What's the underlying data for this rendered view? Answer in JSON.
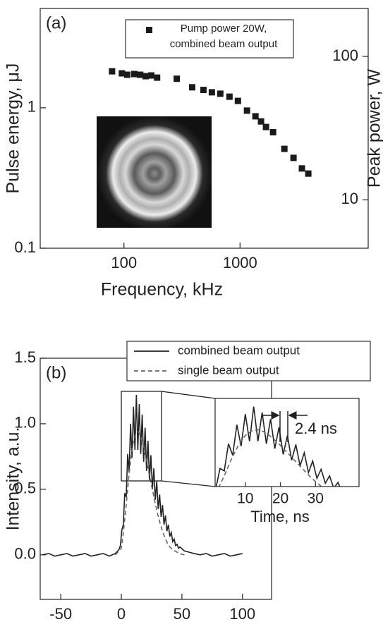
{
  "chart_data": [
    {
      "type": "scatter",
      "annotation": "(a)",
      "xlabel": "Frequency, kHz",
      "ylabel": "Pulse energy, μJ",
      "y2label": "Peak power, W",
      "xscale": "log",
      "yscale": "log",
      "y2scale": "log",
      "xlim": [
        19,
        12700
      ],
      "ylim": [
        0.1,
        5.1
      ],
      "y2lim": [
        4.6,
        216
      ],
      "xticks": [
        100,
        1000
      ],
      "yticks": [
        0.1,
        1
      ],
      "y2ticks": [
        10,
        100
      ],
      "series": [
        {
          "name": "Pump power 20W, combined beam output",
          "color": "#1a1a1a",
          "x": [
            79,
            96,
            107,
            123,
            138,
            154,
            172,
            193,
            285,
            387,
            484,
            572,
            676,
            811,
            959,
            1148,
            1358,
            1516,
            1673,
            1926,
            2409,
            2887,
            3412,
            3872
          ],
          "values": [
            1.82,
            1.76,
            1.72,
            1.74,
            1.72,
            1.68,
            1.7,
            1.64,
            1.61,
            1.4,
            1.34,
            1.29,
            1.26,
            1.2,
            1.12,
            0.955,
            0.87,
            0.8,
            0.73,
            0.67,
            0.51,
            0.44,
            0.37,
            0.34
          ]
        }
      ]
    },
    {
      "type": "line",
      "annotation": "(b)",
      "xlabel": "Time, ns",
      "ylabel": "Intensity, a.u.",
      "xlim": [
        -67,
        124
      ],
      "ylim": [
        -0.34,
        1.5
      ],
      "xticks": [
        -50,
        0,
        50,
        100
      ],
      "yticks": [
        {
          "value": 0,
          "label": "0.0"
        },
        0.5,
        {
          "value": 1,
          "label": "1.0"
        },
        1.5
      ],
      "series": [
        {
          "name": "combined beam output",
          "color": "#222222",
          "linestyle": "solid",
          "x": [
            -65,
            -60,
            -55,
            -50,
            -45,
            -40,
            -35,
            -30,
            -25,
            -20,
            -15,
            -10,
            -5,
            -2,
            -0.8,
            0.4,
            1.6,
            2.8,
            4,
            5.2,
            6.4,
            7.6,
            8.8,
            10,
            11.2,
            12.4,
            13.6,
            14.8,
            16,
            17.2,
            18.4,
            19.6,
            20.8,
            22,
            23.2,
            24.4,
            25.6,
            26.8,
            28,
            29.2,
            30.4,
            31.6,
            32.8,
            34,
            35.2,
            36.4,
            37.6,
            38.8,
            40,
            41.2,
            42.4,
            43.6,
            44.8,
            46,
            47.2,
            48.4,
            52,
            56,
            60,
            65,
            70,
            75,
            80,
            85,
            90,
            95,
            100
          ],
          "values": [
            0,
            0.01,
            -0.01,
            0,
            0.01,
            -0.01,
            0,
            0.01,
            -0.01,
            0,
            0.01,
            -0.01,
            0.01,
            0.04,
            0.07,
            0.19,
            0.23,
            0.47,
            0.44,
            0.77,
            0.63,
            1.0,
            0.74,
            1.13,
            0.8,
            1.22,
            0.8,
            1.15,
            0.77,
            1.07,
            0.71,
            0.97,
            0.64,
            0.87,
            0.57,
            0.76,
            0.5,
            0.66,
            0.42,
            0.56,
            0.35,
            0.46,
            0.29,
            0.38,
            0.23,
            0.3,
            0.18,
            0.23,
            0.14,
            0.17,
            0.1,
            0.12,
            0.07,
            0.08,
            0.05,
            0.06,
            0.03,
            0.02,
            0.01,
            0,
            0.01,
            -0.01,
            0,
            0.01,
            -0.01,
            0,
            0.01
          ]
        },
        {
          "name": "single beam output",
          "color": "#666666",
          "linestyle": "dashed",
          "x": [
            -5,
            0,
            2,
            4,
            6,
            8,
            10,
            12,
            14,
            16,
            18,
            20,
            22,
            24,
            26,
            28,
            30,
            32,
            34,
            36,
            38,
            40,
            44,
            48,
            52
          ],
          "values": [
            0,
            0.05,
            0.2,
            0.38,
            0.58,
            0.75,
            0.87,
            0.93,
            0.94,
            0.9,
            0.83,
            0.75,
            0.66,
            0.57,
            0.48,
            0.39,
            0.31,
            0.24,
            0.18,
            0.13,
            0.09,
            0.06,
            0.03,
            0.01,
            0
          ]
        }
      ],
      "inset": {
        "xlabel": "Time, ns",
        "annotation": "2.4 ns",
        "xlim": [
          1.4,
          42.4
        ],
        "ylim": [
          0.25,
          1.32
        ],
        "xticks": [
          10,
          20,
          30
        ]
      }
    }
  ]
}
